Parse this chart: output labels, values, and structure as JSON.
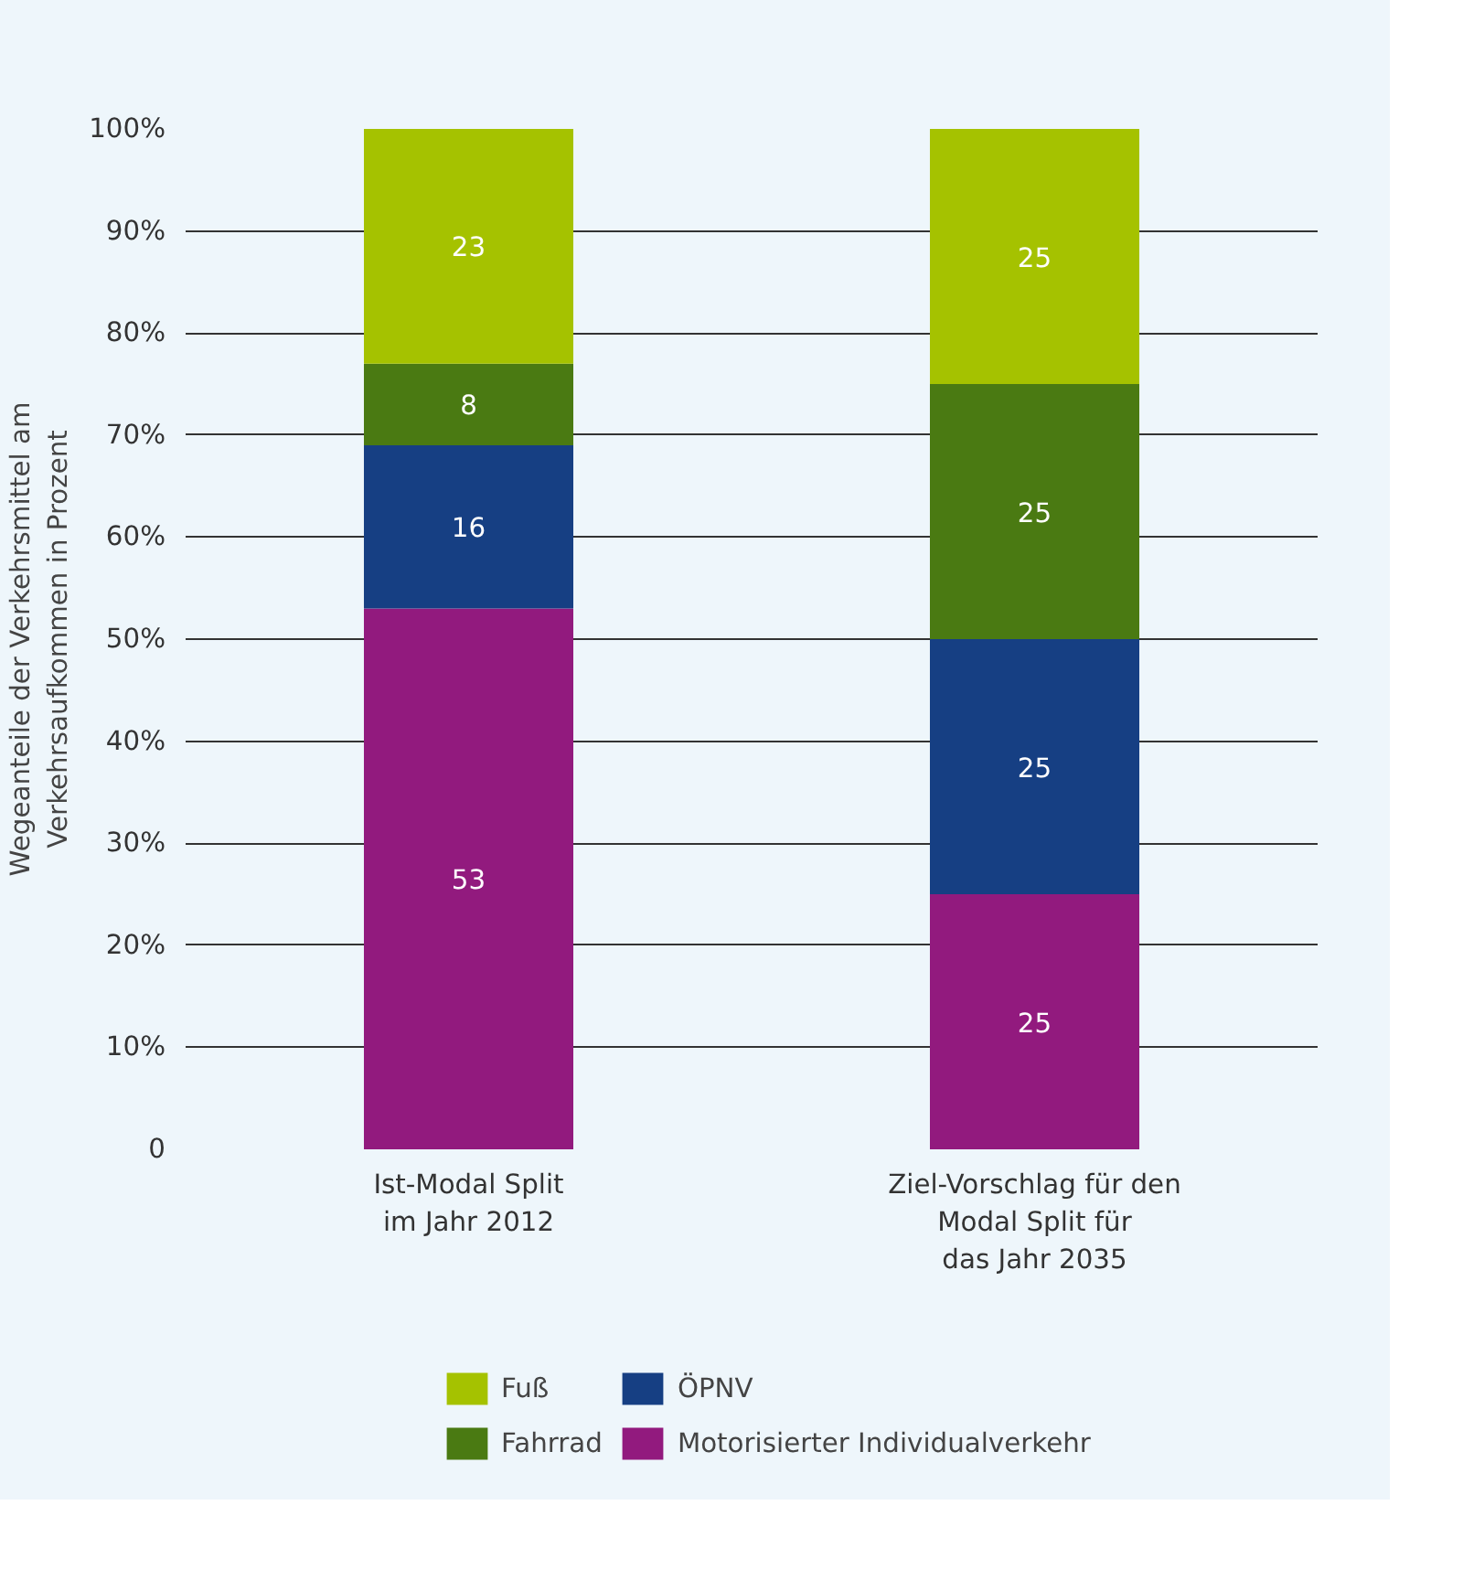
{
  "chart_data": {
    "type": "bar",
    "stacked": true,
    "ylabel": "Wegeanteile der Verkehrsmittel am\nVerkehrsaufkommen in Prozent",
    "categories": [
      "Ist-Modal Split\nim Jahr 2012",
      "Ziel-Vorschlag für den\nModal Split für\ndas Jahr 2035"
    ],
    "series": [
      {
        "name": "Motorisierter Individualverkehr",
        "color": "#921a7e",
        "values": [
          53,
          25
        ]
      },
      {
        "name": "ÖPNV",
        "color": "#163f83",
        "values": [
          16,
          25
        ]
      },
      {
        "name": "Fahrrad",
        "color": "#4a7a12",
        "values": [
          8,
          25
        ]
      },
      {
        "name": "Fuß",
        "color": "#a5c200",
        "values": [
          23,
          25
        ]
      }
    ],
    "ylim": [
      0,
      100
    ],
    "yticks": [
      0,
      {
        "value": 10,
        "label": "10%"
      },
      {
        "value": 20,
        "label": "20%"
      },
      {
        "value": 30,
        "label": "30%"
      },
      {
        "value": 40,
        "label": "40%"
      },
      {
        "value": 50,
        "label": "50%"
      },
      {
        "value": 60,
        "label": "60%"
      },
      {
        "value": 70,
        "label": "70%"
      },
      {
        "value": 80,
        "label": "80%"
      },
      {
        "value": 90,
        "label": "90%"
      },
      {
        "value": 100,
        "label": "100%"
      }
    ],
    "grid": "y",
    "legend": "bottom",
    "data_labels": true
  }
}
